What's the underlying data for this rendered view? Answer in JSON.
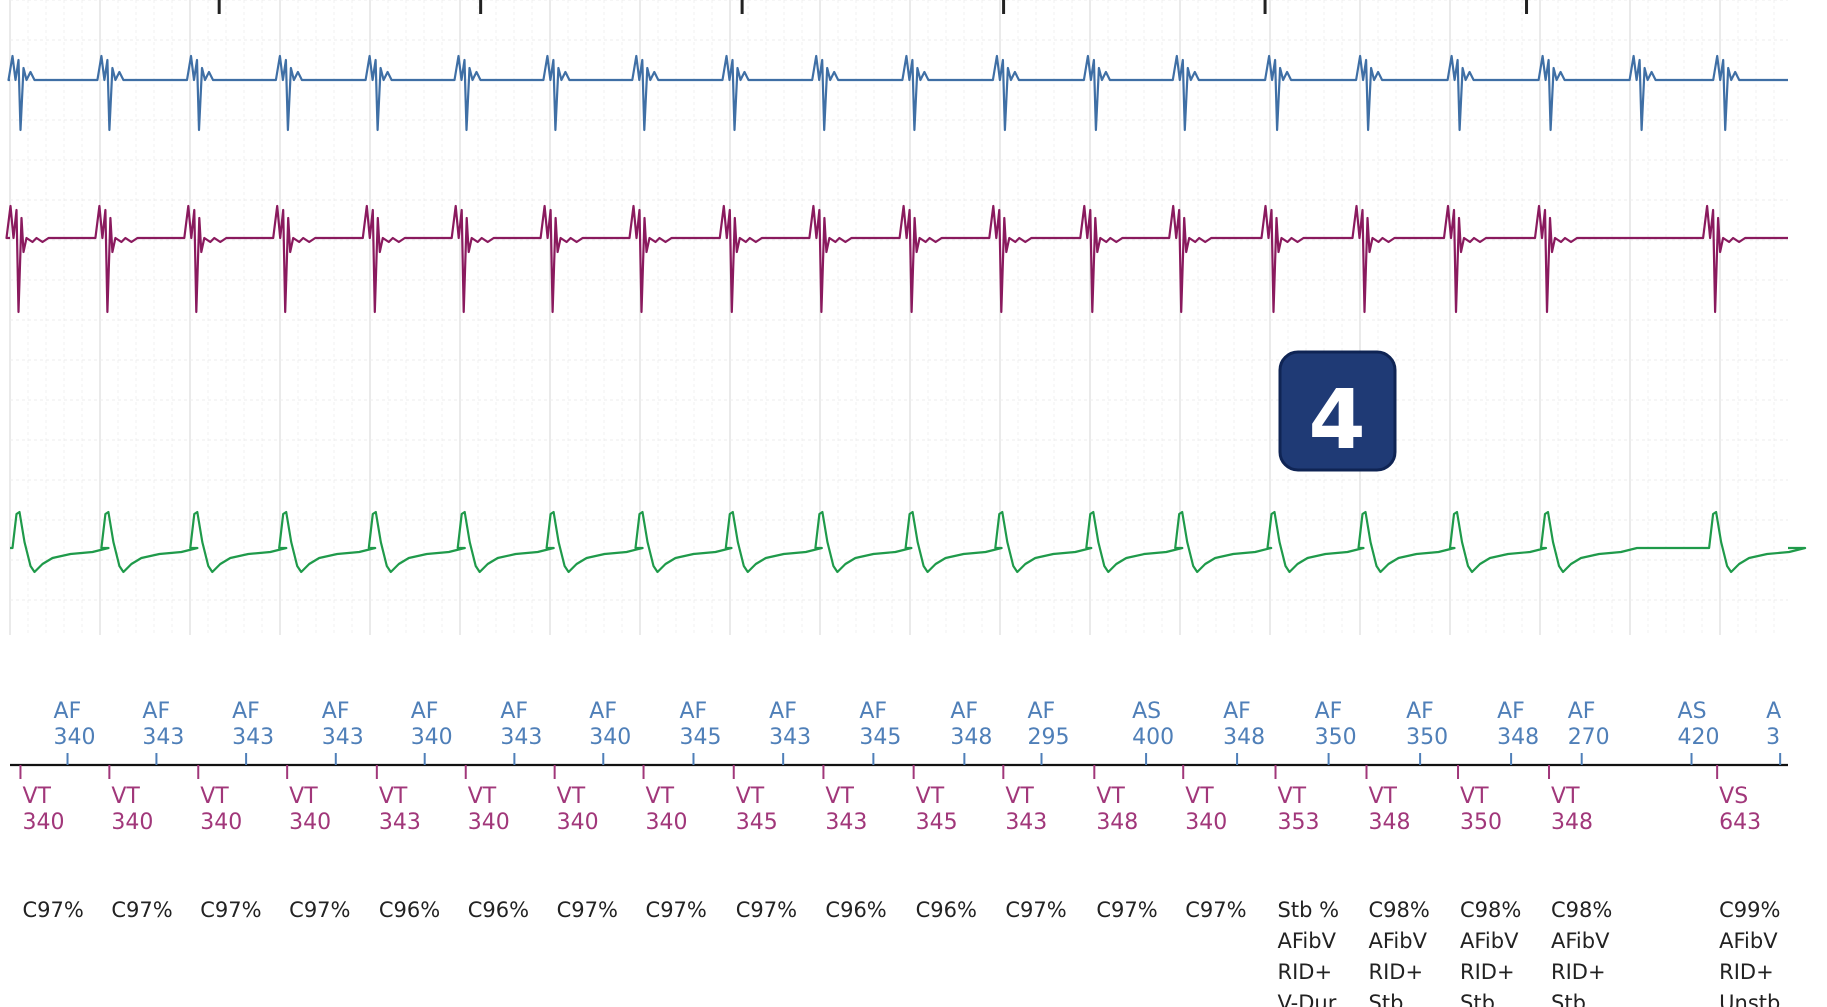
{
  "badge": {
    "label": "4",
    "color": "#1f3a75"
  },
  "colors": {
    "ch1": "#3f6fa5",
    "ch2": "#8a1a5e",
    "ch3": "#1f9a4a",
    "atrial": "#4f7fb8",
    "vent": "#a1377a",
    "diag": "#222222",
    "grid": "#e4e4e4"
  },
  "chart_data": {
    "type": "line",
    "series": [
      {
        "channel": "ch1",
        "beat_times_ms": [
          0,
          340,
          683,
          1023,
          1366,
          1706,
          2046,
          2386,
          2731,
          3074,
          3419,
          3765,
          4113,
          4453,
          4806,
          5154,
          5504,
          5852,
          6200,
          6520
        ]
      },
      {
        "channel": "ch2",
        "beat_times_ms": [
          0,
          340,
          680,
          1020,
          1363,
          1703,
          2043,
          2383,
          2728,
          3071,
          3416,
          3759,
          4107,
          4447,
          4800,
          5148,
          5498,
          5846,
          6489
        ]
      },
      {
        "channel": "ch3",
        "beat_times_ms": [
          0,
          340,
          680,
          1020,
          1363,
          1703,
          2043,
          2383,
          2728,
          3071,
          3416,
          3759,
          4107,
          4447,
          4800,
          5148,
          5498,
          5846,
          6489
        ]
      }
    ],
    "atrial_markers": [
      {
        "code": "AF",
        "interval": "340",
        "t": 180
      },
      {
        "code": "AF",
        "interval": "343",
        "t": 520
      },
      {
        "code": "AF",
        "interval": "343",
        "t": 863
      },
      {
        "code": "AF",
        "interval": "343",
        "t": 1206
      },
      {
        "code": "AF",
        "interval": "340",
        "t": 1546
      },
      {
        "code": "AF",
        "interval": "343",
        "t": 1889
      },
      {
        "code": "AF",
        "interval": "340",
        "t": 2229
      },
      {
        "code": "AF",
        "interval": "345",
        "t": 2574
      },
      {
        "code": "AF",
        "interval": "343",
        "t": 2917
      },
      {
        "code": "AF",
        "interval": "345",
        "t": 3262
      },
      {
        "code": "AF",
        "interval": "348",
        "t": 3610
      },
      {
        "code": "AF",
        "interval": "295",
        "t": 3905
      },
      {
        "code": "AS",
        "interval": "400",
        "t": 4305
      },
      {
        "code": "AF",
        "interval": "348",
        "t": 4653
      },
      {
        "code": "AF",
        "interval": "350",
        "t": 5003
      },
      {
        "code": "AF",
        "interval": "350",
        "t": 5353
      },
      {
        "code": "AF",
        "interval": "348",
        "t": 5701
      },
      {
        "code": "AF",
        "interval": "270",
        "t": 5971
      },
      {
        "code": "AS",
        "interval": "420",
        "t": 6391
      },
      {
        "code": "A",
        "interval": "3",
        "t": 6730
      }
    ],
    "ventricular_markers": [
      {
        "code": "VT",
        "interval": "340",
        "t": 0,
        "diag": [
          "C97%"
        ]
      },
      {
        "code": "VT",
        "interval": "340",
        "t": 340,
        "diag": [
          "C97%"
        ]
      },
      {
        "code": "VT",
        "interval": "340",
        "t": 680,
        "diag": [
          "C97%"
        ]
      },
      {
        "code": "VT",
        "interval": "340",
        "t": 1020,
        "diag": [
          "C97%"
        ]
      },
      {
        "code": "VT",
        "interval": "343",
        "t": 1363,
        "diag": [
          "C96%"
        ]
      },
      {
        "code": "VT",
        "interval": "340",
        "t": 1703,
        "diag": [
          "C96%"
        ]
      },
      {
        "code": "VT",
        "interval": "340",
        "t": 2043,
        "diag": [
          "C97%"
        ]
      },
      {
        "code": "VT",
        "interval": "340",
        "t": 2383,
        "diag": [
          "C97%"
        ]
      },
      {
        "code": "VT",
        "interval": "345",
        "t": 2728,
        "diag": [
          "C97%"
        ]
      },
      {
        "code": "VT",
        "interval": "343",
        "t": 3071,
        "diag": [
          "C96%"
        ]
      },
      {
        "code": "VT",
        "interval": "345",
        "t": 3416,
        "diag": [
          "C96%"
        ]
      },
      {
        "code": "VT",
        "interval": "343",
        "t": 3759,
        "diag": [
          "C97%"
        ]
      },
      {
        "code": "VT",
        "interval": "348",
        "t": 4107,
        "diag": [
          "C97%"
        ]
      },
      {
        "code": "VT",
        "interval": "340",
        "t": 4447,
        "diag": [
          "C97%"
        ]
      },
      {
        "code": "VT",
        "interval": "353",
        "t": 4800,
        "diag": [
          "Stb %",
          "AFibV",
          "RID+",
          "V-Dur"
        ]
      },
      {
        "code": "VT",
        "interval": "348",
        "t": 5148,
        "diag": [
          "C98%",
          "AFibV",
          "RID+",
          "Stb"
        ]
      },
      {
        "code": "VT",
        "interval": "350",
        "t": 5498,
        "diag": [
          "C98%",
          "AFibV",
          "RID+",
          "Stb"
        ]
      },
      {
        "code": "VT",
        "interval": "348",
        "t": 5846,
        "diag": [
          "C98%",
          "AFibV",
          "RID+",
          "Stb"
        ]
      },
      {
        "code": "VS",
        "interval": "643",
        "t": 6489,
        "diag": [
          "C99%",
          "AFibV",
          "RID+",
          "Unstb"
        ]
      }
    ],
    "xlim_ms": [
      -40,
      6760
    ],
    "time_ticks_ms": [
      760,
      1760,
      2760,
      3760,
      4760,
      5760
    ],
    "grid": true
  }
}
